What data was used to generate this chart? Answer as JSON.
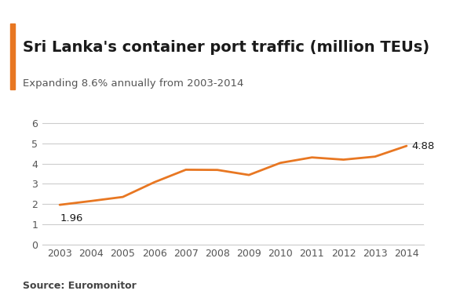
{
  "title": "Sri Lanka's container port traffic (million TEUs)",
  "subtitle": "Expanding 8.6% annually from 2003-2014",
  "source": "Source: Euromonitor",
  "years": [
    2003,
    2004,
    2005,
    2006,
    2007,
    2008,
    2009,
    2010,
    2011,
    2012,
    2013,
    2014
  ],
  "values": [
    1.96,
    2.15,
    2.35,
    3.08,
    3.7,
    3.69,
    3.44,
    4.04,
    4.31,
    4.2,
    4.35,
    4.88
  ],
  "line_color": "#E87722",
  "line_width": 2.0,
  "background_color": "#ffffff",
  "plot_bg_color": "#ffffff",
  "title_color": "#1a1a1a",
  "subtitle_color": "#555555",
  "source_color": "#444444",
  "annotation_first": "1.96",
  "annotation_last": "4.88",
  "ylim": [
    0,
    6.5
  ],
  "yticks": [
    0,
    1,
    2,
    3,
    4,
    5,
    6
  ],
  "title_bar_color": "#E87722",
  "grid_color": "#cccccc",
  "tick_color": "#555555",
  "title_fontsize": 14,
  "subtitle_fontsize": 9.5,
  "source_fontsize": 9,
  "annotation_fontsize": 9.5,
  "tick_fontsize": 9
}
